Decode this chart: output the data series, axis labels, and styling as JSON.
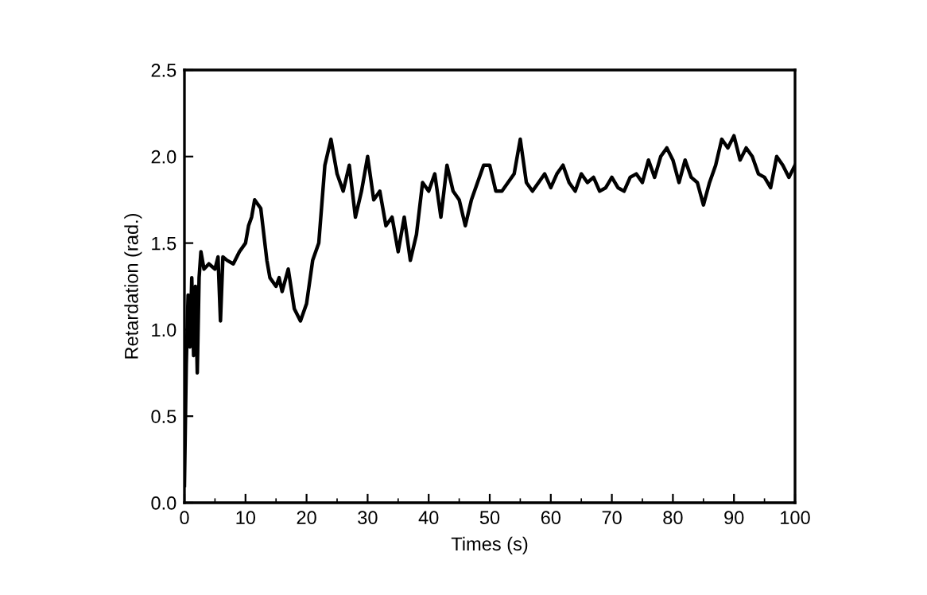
{
  "chart_data": {
    "type": "line",
    "xlabel": "Times (s)",
    "ylabel": "Retardation (rad.)",
    "xlim": [
      0,
      100
    ],
    "ylim": [
      0,
      2.5
    ],
    "xticks": [
      0,
      10,
      20,
      30,
      40,
      50,
      60,
      70,
      80,
      90,
      100
    ],
    "yticks": [
      {
        "value": 0,
        "label": "0.0"
      },
      0.5,
      {
        "value": 1,
        "label": "1.0"
      },
      1.5,
      {
        "value": 2,
        "label": "2.0"
      },
      2.5
    ],
    "grid": false,
    "legend": false,
    "marker": "none",
    "line_style": "solid",
    "series": [
      {
        "color": "#000000",
        "x": [
          0,
          0.3,
          0.6,
          0.9,
          1.2,
          1.5,
          1.8,
          2.1,
          2.4,
          2.7,
          3.2,
          4,
          5,
          5.5,
          5.9,
          6.3,
          7,
          8,
          9,
          10,
          10.5,
          11,
          11.5,
          12.5,
          13.5,
          14,
          15,
          15.5,
          16,
          17,
          18,
          19,
          20,
          21,
          22,
          23,
          24,
          25,
          26,
          27,
          28,
          29,
          30,
          31,
          32,
          33,
          34,
          35,
          36,
          37,
          38,
          39,
          40,
          41,
          42,
          43,
          44,
          45,
          46,
          47,
          48,
          49,
          50,
          51,
          52,
          54,
          55,
          56,
          57,
          58,
          59,
          60,
          61,
          62,
          63,
          64,
          65,
          66,
          67,
          68,
          69,
          70,
          71,
          72,
          73,
          74,
          75,
          76,
          77,
          78,
          79,
          80,
          81,
          82,
          83,
          84,
          85,
          86,
          87,
          88,
          89,
          90,
          91,
          92,
          93,
          94,
          95,
          96,
          97,
          98,
          99,
          100
        ],
        "values": [
          0.1,
          0.8,
          1.2,
          0.9,
          1.3,
          0.85,
          1.25,
          0.75,
          1.3,
          1.45,
          1.35,
          1.38,
          1.35,
          1.42,
          1.05,
          1.42,
          1.4,
          1.38,
          1.45,
          1.5,
          1.6,
          1.65,
          1.75,
          1.7,
          1.4,
          1.3,
          1.25,
          1.3,
          1.22,
          1.35,
          1.12,
          1.05,
          1.15,
          1.4,
          1.5,
          1.95,
          2.1,
          1.9,
          1.8,
          1.95,
          1.65,
          1.8,
          2.0,
          1.75,
          1.8,
          1.6,
          1.65,
          1.45,
          1.65,
          1.4,
          1.55,
          1.85,
          1.8,
          1.9,
          1.65,
          1.95,
          1.8,
          1.75,
          1.6,
          1.75,
          1.85,
          1.95,
          1.95,
          1.8,
          1.8,
          1.9,
          2.1,
          1.85,
          1.8,
          1.85,
          1.9,
          1.82,
          1.9,
          1.95,
          1.85,
          1.8,
          1.9,
          1.85,
          1.88,
          1.8,
          1.82,
          1.88,
          1.82,
          1.8,
          1.88,
          1.9,
          1.85,
          1.98,
          1.88,
          2.0,
          2.05,
          1.98,
          1.85,
          1.98,
          1.88,
          1.85,
          1.72,
          1.85,
          1.95,
          2.1,
          2.05,
          2.12,
          1.98,
          2.05,
          2.0,
          1.9,
          1.88,
          1.82,
          2.0,
          1.95,
          1.88,
          1.95
        ]
      }
    ]
  }
}
